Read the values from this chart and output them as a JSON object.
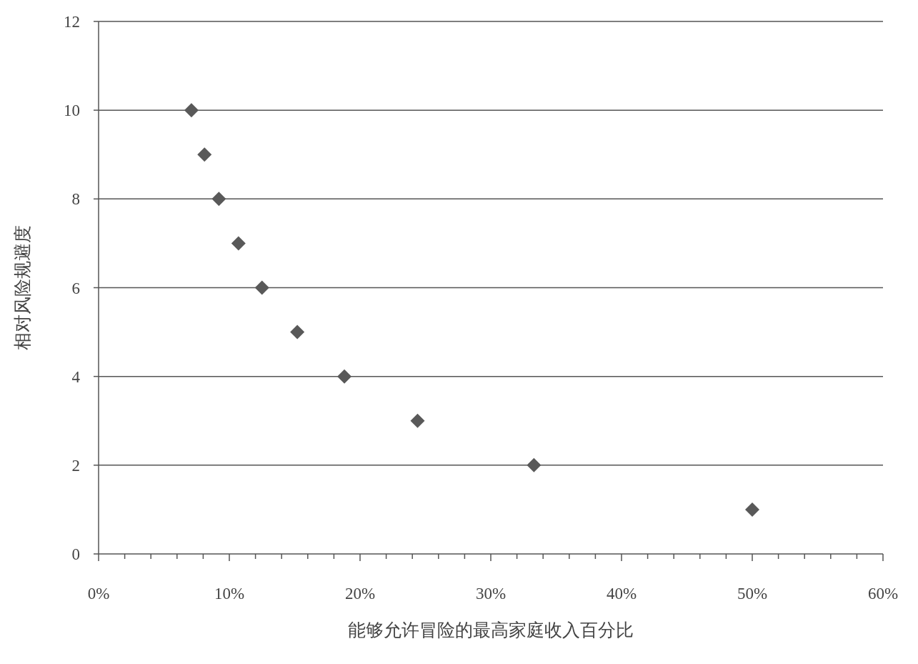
{
  "chart_data": {
    "type": "scatter",
    "xlabel": "能够允许冒险的最高家庭收入百分比",
    "ylabel": "相对风险规避度",
    "x": [
      7.1,
      8.1,
      9.2,
      10.7,
      12.5,
      15.2,
      18.8,
      24.4,
      33.3,
      50
    ],
    "values": [
      10,
      9,
      8,
      7,
      6,
      5,
      4,
      3,
      2,
      1
    ],
    "color": "#595959",
    "marker": "diamond",
    "grid": "y",
    "xlim": [
      0,
      60
    ],
    "xticks": [
      {
        "value": 0,
        "label": "0%"
      },
      {
        "value": 2,
        "label": null
      },
      {
        "value": 4,
        "label": null
      },
      {
        "value": 6,
        "label": null
      },
      {
        "value": 8,
        "label": null
      },
      {
        "value": 10,
        "label": "10%"
      },
      {
        "value": 12,
        "label": null
      },
      {
        "value": 14,
        "label": null
      },
      {
        "value": 16,
        "label": null
      },
      {
        "value": 18,
        "label": null
      },
      {
        "value": 20,
        "label": "20%"
      },
      {
        "value": 22,
        "label": null
      },
      {
        "value": 24,
        "label": null
      },
      {
        "value": 26,
        "label": null
      },
      {
        "value": 28,
        "label": null
      },
      {
        "value": 30,
        "label": "30%"
      },
      {
        "value": 32,
        "label": null
      },
      {
        "value": 34,
        "label": null
      },
      {
        "value": 36,
        "label": null
      },
      {
        "value": 38,
        "label": null
      },
      {
        "value": 40,
        "label": "40%"
      },
      {
        "value": 42,
        "label": null
      },
      {
        "value": 44,
        "label": null
      },
      {
        "value": 46,
        "label": null
      },
      {
        "value": 48,
        "label": null
      },
      {
        "value": 50,
        "label": "50%"
      },
      {
        "value": 52,
        "label": null
      },
      {
        "value": 54,
        "label": null
      },
      {
        "value": 56,
        "label": null
      },
      {
        "value": 58,
        "label": null
      },
      {
        "value": 60,
        "label": "60%"
      }
    ],
    "ylim": [
      0,
      12
    ],
    "yticks": [
      0,
      2,
      4,
      6,
      8,
      10,
      12
    ]
  }
}
